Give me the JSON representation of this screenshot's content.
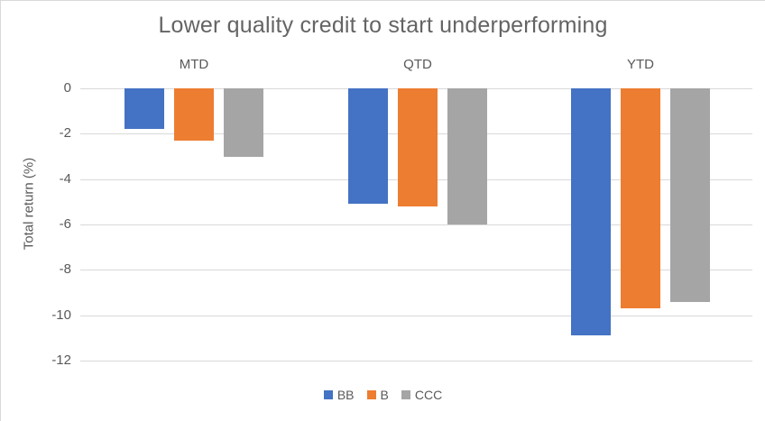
{
  "chart_data": {
    "type": "bar",
    "title": "Lower quality credit to start underperforming",
    "ylabel": "Total return (%)",
    "categories": [
      "MTD",
      "QTD",
      "YTD"
    ],
    "series": [
      {
        "name": "BB",
        "color": "#4472C4",
        "values": [
          -1.8,
          -5.1,
          -10.9
        ]
      },
      {
        "name": "B",
        "color": "#ED7D31",
        "values": [
          -2.3,
          -5.2,
          -9.7
        ]
      },
      {
        "name": "CCC",
        "color": "#A5A5A5",
        "values": [
          -3.0,
          -6.0,
          -9.4
        ]
      }
    ],
    "ylim": [
      -12,
      0
    ],
    "yticks": [
      0,
      -2,
      -4,
      -6,
      -8,
      -10,
      -12
    ],
    "grid": true,
    "legend_position": "bottom",
    "colors": {
      "gridline": "#d9d9d9",
      "text": "#595959",
      "title_text": "#646464",
      "background": "#ffffff"
    }
  }
}
